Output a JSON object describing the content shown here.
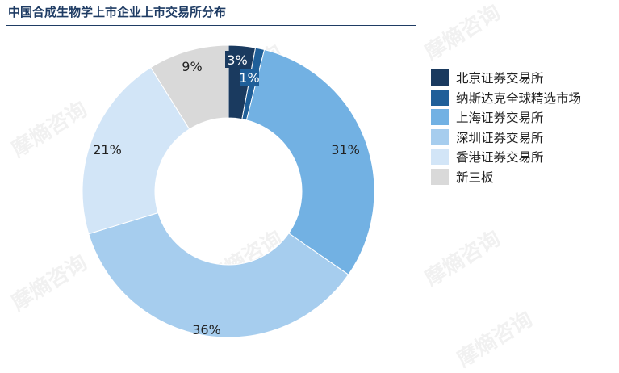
{
  "title": "中国合成生物学上市企业上市交易所分布",
  "watermark": "摩熵咨询",
  "chart_data": {
    "type": "pie",
    "donut": true,
    "title": "中国合成生物学上市企业上市交易所分布",
    "legend_position": "right",
    "slices": [
      {
        "name": "北京证券交易所",
        "value": 3,
        "label": "3%",
        "color": "#1a3a5f"
      },
      {
        "name": "纳斯达克全球精选市场",
        "value": 1,
        "label": "1%",
        "color": "#1f5f99"
      },
      {
        "name": "上海证券交易所",
        "value": 31,
        "label": "31%",
        "color": "#72b1e3"
      },
      {
        "name": "深圳证券交易所",
        "value": 36,
        "label": "36%",
        "color": "#a6cdee"
      },
      {
        "name": "香港证券交易所",
        "value": 21,
        "label": "21%",
        "color": "#d2e5f7"
      },
      {
        "name": "新三板",
        "value": 9,
        "label": "9%",
        "color": "#d9d9d9"
      }
    ]
  }
}
